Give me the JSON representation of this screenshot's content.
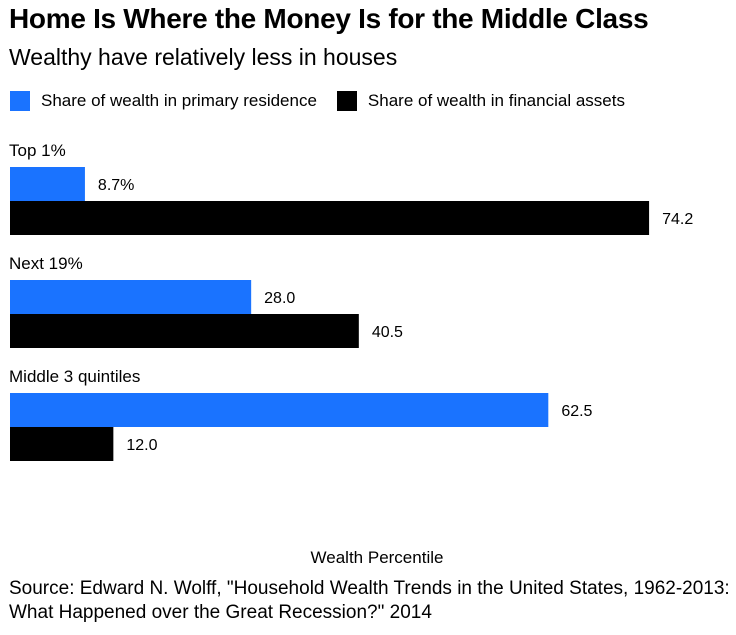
{
  "title": "Home Is Where the Money Is for the Middle Class",
  "subtitle": "Wealthy have relatively less in houses",
  "source": "Source: Edward N. Wolff, \"Household Wealth Trends in the United States, 1962-2013: What Happened over the Great Recession?\" 2014",
  "colors": {
    "residence": "#1a73ff",
    "financial": "#000000"
  },
  "chart_data": {
    "type": "bar",
    "orientation": "horizontal",
    "title": "Home Is Where the Money Is for the Middle Class",
    "subtitle": "Wealthy have relatively less in houses",
    "xlabel": "Wealth Percentile",
    "ylabel": "",
    "categories": [
      "Top 1%",
      "Next 19%",
      "Middle 3 quintiles"
    ],
    "series": [
      {
        "name": "Share of wealth in primary residence",
        "color": "#1a73ff",
        "values": [
          8.7,
          28.0,
          62.5
        ],
        "labels": [
          "8.7%",
          "28.0",
          "62.5"
        ]
      },
      {
        "name": "Share of wealth in financial assets",
        "color": "#000000",
        "values": [
          74.2,
          40.5,
          12.0
        ],
        "labels": [
          "74.2",
          "40.5",
          "12.0"
        ]
      }
    ],
    "xlim": [
      0,
      80
    ],
    "grid": false,
    "legend": "top-left"
  }
}
